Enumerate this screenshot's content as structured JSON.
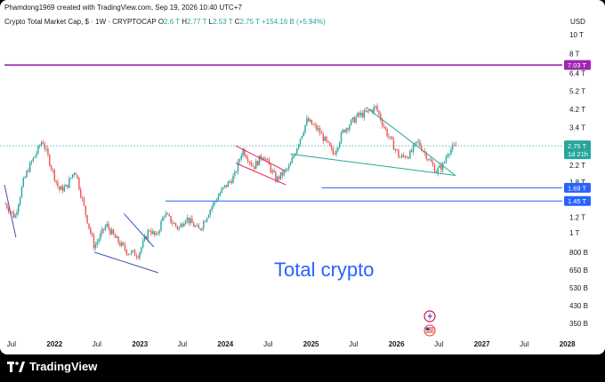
{
  "header": {
    "attribution": "Phamdong1969 created with TradingView.com, Sep 19, 2026 10:40 UTC+7"
  },
  "legend": {
    "symbol": "Crypto Total Market Cap, $ · 1W · CRYPTOCAP",
    "open_label": "O",
    "open": "2.6 T",
    "high_label": "H",
    "high": "2.77 T",
    "low_label": "L",
    "low": "2.53 T",
    "close_label": "C",
    "close": "2.75 T",
    "change": "+154.16 B (+5.94%)"
  },
  "price_axis": {
    "currency": "USD"
  },
  "footer": {
    "brand": "TradingView"
  },
  "colors": {
    "up": "#26a69a",
    "down": "#ef5350",
    "magenta": "#9c27b0",
    "blue": "#2962ff",
    "teal": "#26a69a",
    "last_price": "#26a69a"
  },
  "icons": [
    "lightning-icon",
    "us-flag-icon",
    "tradingview-logo-icon"
  ],
  "chart_data": {
    "type": "candlestick",
    "scale": "log",
    "y_unit": "USD",
    "ylim": [
      300000000000,
      12000000000000
    ],
    "y_ticks": [
      {
        "value": 10000000000000,
        "label": "10 T"
      },
      {
        "value": 8000000000000,
        "label": "8 T"
      },
      {
        "value": 6400000000000,
        "label": "6.4 T"
      },
      {
        "value": 5200000000000,
        "label": "5.2 T"
      },
      {
        "value": 4200000000000,
        "label": "4.2 T"
      },
      {
        "value": 3400000000000,
        "label": "3.4 T"
      },
      {
        "value": 2200000000000,
        "label": "2.2 T"
      },
      {
        "value": 1800000000000,
        "label": "1.8 T"
      },
      {
        "value": 1200000000000,
        "label": "1.2 T"
      },
      {
        "value": 1000000000000,
        "label": "1 T"
      },
      {
        "value": 800000000000,
        "label": "800 B"
      },
      {
        "value": 650000000000,
        "label": "650 B"
      },
      {
        "value": 530000000000,
        "label": "530 B"
      },
      {
        "value": 430000000000,
        "label": "430 B"
      },
      {
        "value": 350000000000,
        "label": "350 B"
      }
    ],
    "x_ticks": [
      {
        "date": "2021-07-01",
        "label": "Jul",
        "year": false
      },
      {
        "date": "2022-01-01",
        "label": "2022",
        "year": true
      },
      {
        "date": "2022-07-01",
        "label": "Jul",
        "year": false
      },
      {
        "date": "2023-01-01",
        "label": "2023",
        "year": true
      },
      {
        "date": "2023-07-01",
        "label": "Jul",
        "year": false
      },
      {
        "date": "2024-01-01",
        "label": "2024",
        "year": true
      },
      {
        "date": "2024-07-01",
        "label": "Jul",
        "year": false
      },
      {
        "date": "2025-01-01",
        "label": "2025",
        "year": true
      },
      {
        "date": "2025-07-01",
        "label": "Jul",
        "year": false
      },
      {
        "date": "2026-01-01",
        "label": "2026",
        "year": true
      },
      {
        "date": "2026-07-01",
        "label": "Jul",
        "year": false
      },
      {
        "date": "2027-01-01",
        "label": "2027",
        "year": true
      },
      {
        "date": "2027-07-01",
        "label": "Jul",
        "year": false
      },
      {
        "date": "2028-01-01",
        "label": "2028",
        "year": true
      }
    ],
    "xlim": [
      "2021-06-01",
      "2028-06-10"
    ],
    "price_anchors": [
      {
        "date": "2021-06-05",
        "value": 1.4
      },
      {
        "date": "2021-07-15",
        "value": 1.2
      },
      {
        "date": "2021-08-20",
        "value": 1.8
      },
      {
        "date": "2021-09-10",
        "value": 2.1
      },
      {
        "date": "2021-10-20",
        "value": 2.6
      },
      {
        "date": "2021-11-10",
        "value": 2.95
      },
      {
        "date": "2021-12-10",
        "value": 2.3
      },
      {
        "date": "2022-01-20",
        "value": 1.65
      },
      {
        "date": "2022-02-20",
        "value": 1.7
      },
      {
        "date": "2022-03-30",
        "value": 2.1
      },
      {
        "date": "2022-05-10",
        "value": 1.3
      },
      {
        "date": "2022-06-20",
        "value": 0.85
      },
      {
        "date": "2022-08-10",
        "value": 1.1
      },
      {
        "date": "2022-09-20",
        "value": 0.93
      },
      {
        "date": "2022-11-10",
        "value": 0.8
      },
      {
        "date": "2022-12-25",
        "value": 0.78
      },
      {
        "date": "2023-02-10",
        "value": 1.05
      },
      {
        "date": "2023-03-10",
        "value": 0.95
      },
      {
        "date": "2023-04-15",
        "value": 1.25
      },
      {
        "date": "2023-06-15",
        "value": 1.05
      },
      {
        "date": "2023-07-15",
        "value": 1.2
      },
      {
        "date": "2023-09-10",
        "value": 1.03
      },
      {
        "date": "2023-10-25",
        "value": 1.3
      },
      {
        "date": "2023-12-10",
        "value": 1.6
      },
      {
        "date": "2024-02-10",
        "value": 1.95
      },
      {
        "date": "2024-03-14",
        "value": 2.65
      },
      {
        "date": "2024-05-01",
        "value": 2.15
      },
      {
        "date": "2024-06-10",
        "value": 2.5
      },
      {
        "date": "2024-08-05",
        "value": 1.85
      },
      {
        "date": "2024-10-01",
        "value": 2.15
      },
      {
        "date": "2024-11-10",
        "value": 2.9
      },
      {
        "date": "2024-12-15",
        "value": 3.7
      },
      {
        "date": "2025-02-01",
        "value": 3.3
      },
      {
        "date": "2025-04-07",
        "value": 2.5
      },
      {
        "date": "2025-05-20",
        "value": 3.3
      },
      {
        "date": "2025-07-20",
        "value": 3.9
      },
      {
        "date": "2025-08-20",
        "value": 4.0
      },
      {
        "date": "2025-10-05",
        "value": 4.3
      },
      {
        "date": "2025-11-20",
        "value": 3.2
      },
      {
        "date": "2026-01-15",
        "value": 2.4
      },
      {
        "date": "2026-03-01",
        "value": 2.5
      },
      {
        "date": "2026-04-01",
        "value": 2.9
      },
      {
        "date": "2026-05-15",
        "value": 2.4
      },
      {
        "date": "2026-06-20",
        "value": 2.05
      },
      {
        "date": "2026-07-20",
        "value": 2.2
      },
      {
        "date": "2026-08-10",
        "value": 2.6
      },
      {
        "date": "2026-09-15",
        "value": 2.75
      }
    ],
    "price_anchor_unit": "T",
    "horizontal_levels": [
      {
        "value": 7030000000000,
        "label": "7.03 T",
        "color": "#9c27b0",
        "from": "2021-06-01"
      },
      {
        "value": 1690000000000,
        "label": "1.69 T",
        "color": "#2962ff",
        "from": "2025-02-15"
      },
      {
        "value": 1450000000000,
        "label": "1.45 T",
        "color": "#2962ff",
        "from": "2023-04-20"
      }
    ],
    "last_price": {
      "value": 2750000000000,
      "label": "2.75 T",
      "countdown": "1d 21h"
    },
    "trendlines": [
      {
        "color": "#3f51b5",
        "from": [
          "2021-06-01",
          1.75
        ],
        "to": [
          "2021-07-20",
          0.95
        ]
      },
      {
        "color": "#3f51b5",
        "from": [
          "2022-10-25",
          1.25
        ],
        "to": [
          "2023-03-01",
          0.85
        ]
      },
      {
        "color": "#3f51b5",
        "from": [
          "2022-06-20",
          0.8
        ],
        "to": [
          "2023-03-20",
          0.63
        ]
      },
      {
        "color": "#e91e63",
        "from": [
          "2024-02-15",
          2.75
        ],
        "to": [
          "2024-09-15",
          2.05
        ]
      },
      {
        "color": "#e91e63",
        "from": [
          "2024-02-15",
          2.25
        ],
        "to": [
          "2024-09-15",
          1.75
        ]
      },
      {
        "color": "#26a69a",
        "from": [
          "2024-10-05",
          2.5
        ],
        "to": [
          "2026-09-10",
          1.95
        ]
      },
      {
        "color": "#26a69a",
        "from": [
          "2025-08-25",
          4.3
        ],
        "to": [
          "2026-09-10",
          1.95
        ]
      }
    ],
    "annotation": "Total crypto"
  }
}
